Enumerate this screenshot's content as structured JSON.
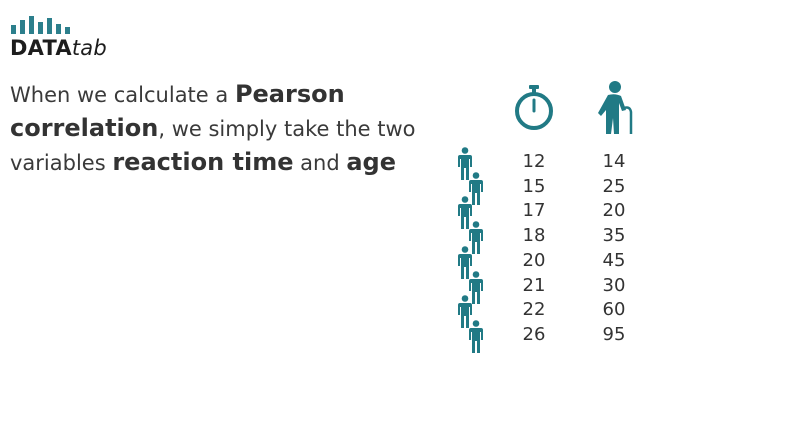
{
  "logo": {
    "brand_strong": "DATA",
    "brand_light": "tab",
    "bar_heights": [
      0.45,
      0.7,
      0.9,
      0.6,
      0.8,
      0.5,
      0.35
    ],
    "color": "#2c7f8c"
  },
  "headline": {
    "part1": "When we calculate a ",
    "highlight1": "Pearson correlation",
    "part2": ", we simply take the two variables ",
    "highlight2": "reaction time",
    "part3": " and ",
    "highlight3": "age"
  },
  "columns": {
    "reaction_time_icon": "stopwatch-icon",
    "age_icon": "elderly-person-icon"
  },
  "rows": [
    {
      "reaction_time": "12",
      "age": "14"
    },
    {
      "reaction_time": "15",
      "age": "25"
    },
    {
      "reaction_time": "17",
      "age": "20"
    },
    {
      "reaction_time": "18",
      "age": "35"
    },
    {
      "reaction_time": "20",
      "age": "45"
    },
    {
      "reaction_time": "21",
      "age": "30"
    },
    {
      "reaction_time": "22",
      "age": "60"
    },
    {
      "reaction_time": "26",
      "age": "95"
    }
  ],
  "row_icon": "person-icon",
  "accent_color": "#217a85"
}
